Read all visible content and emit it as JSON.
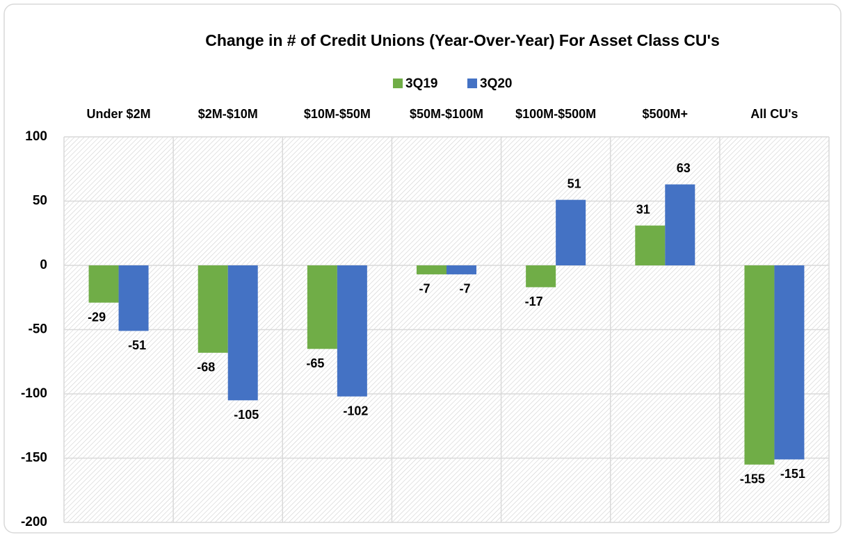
{
  "chart_data": {
    "type": "bar",
    "title": "Change in # of Credit Unions (Year-Over-Year) For Asset Class CU's",
    "categories": [
      "Under $2M",
      "$2M-$10M",
      "$10M-$50M",
      "$50M-$100M",
      "$100M-$500M",
      "$500M+",
      "All CU's"
    ],
    "series": [
      {
        "name": "3Q19",
        "color": "#70ad47",
        "values": [
          -29,
          -68,
          -65,
          -7,
          -17,
          31,
          -155
        ]
      },
      {
        "name": "3Q20",
        "color": "#4472c4",
        "values": [
          -51,
          -105,
          -102,
          -7,
          51,
          63,
          -151
        ]
      }
    ],
    "ylim": [
      -200,
      100
    ],
    "yticks": [
      -200,
      -150,
      -100,
      -50,
      0,
      50,
      100
    ],
    "grid": true,
    "legend": "top"
  }
}
